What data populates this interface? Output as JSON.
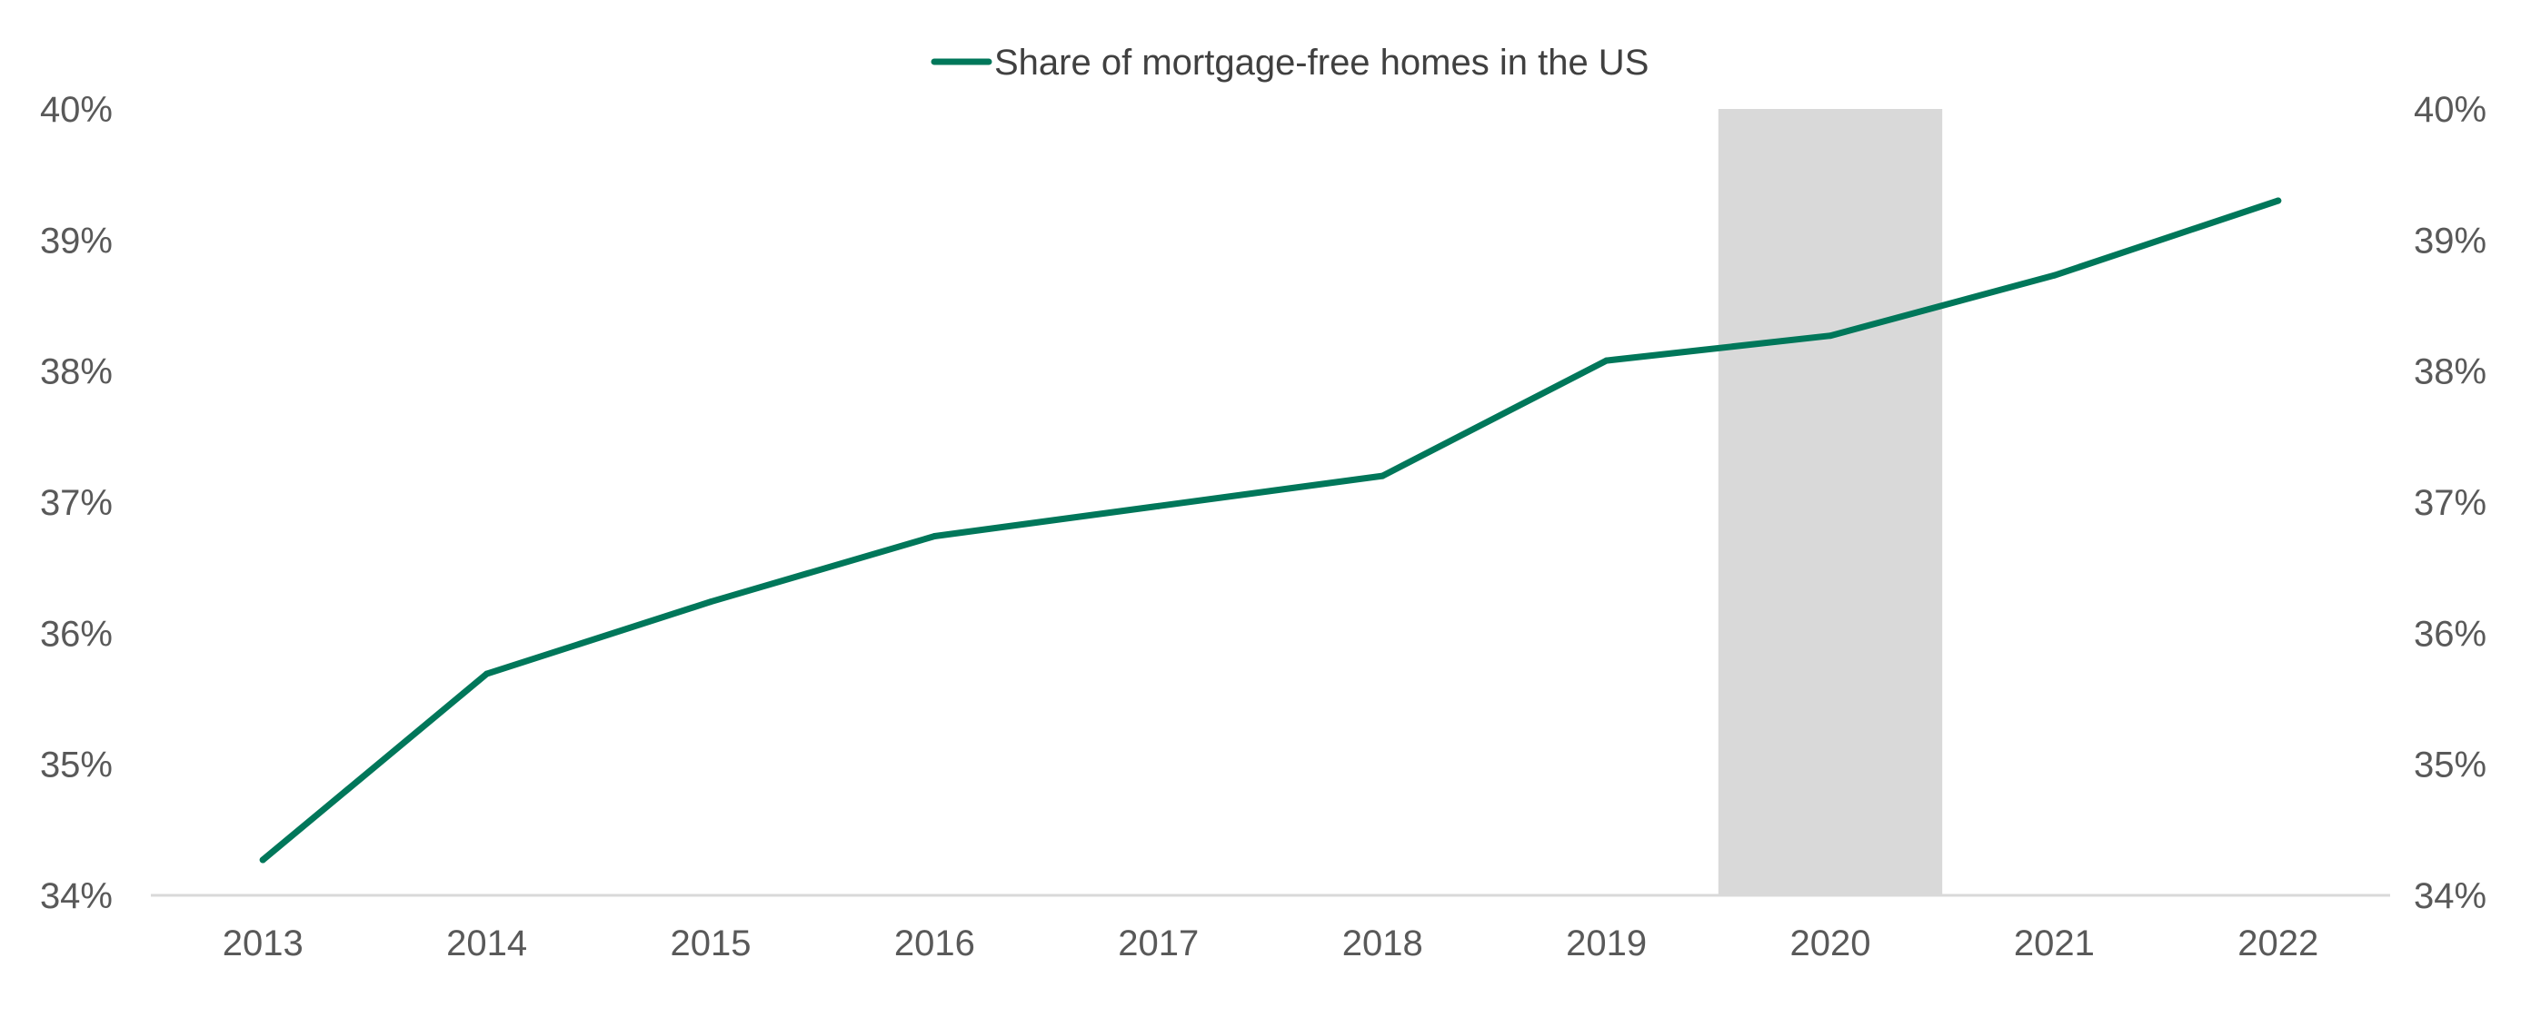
{
  "chart_data": {
    "type": "line",
    "title": "",
    "xlabel": "",
    "ylabel": "",
    "categories": [
      "2013",
      "2014",
      "2015",
      "2016",
      "2017",
      "2018",
      "2019",
      "2020",
      "2021",
      "2022"
    ],
    "series": [
      {
        "name": "Share of mortgage-free homes in the US",
        "color": "#00775A",
        "values": [
          34.27,
          35.69,
          36.24,
          36.74,
          36.97,
          37.2,
          38.08,
          38.27,
          38.73,
          39.3
        ]
      }
    ],
    "ylim": [
      34,
      40
    ],
    "y_ticks": [
      34,
      35,
      36,
      37,
      38,
      39,
      40
    ],
    "y_tick_labels": [
      "34%",
      "35%",
      "36%",
      "37%",
      "38%",
      "39%",
      "40%"
    ],
    "secondary_y_axis": true,
    "shaded_region": {
      "category": "2020",
      "color": "#D9D9D9"
    },
    "legend_position": "top-center",
    "grid": false,
    "axis_color": "#D9D9D9"
  }
}
